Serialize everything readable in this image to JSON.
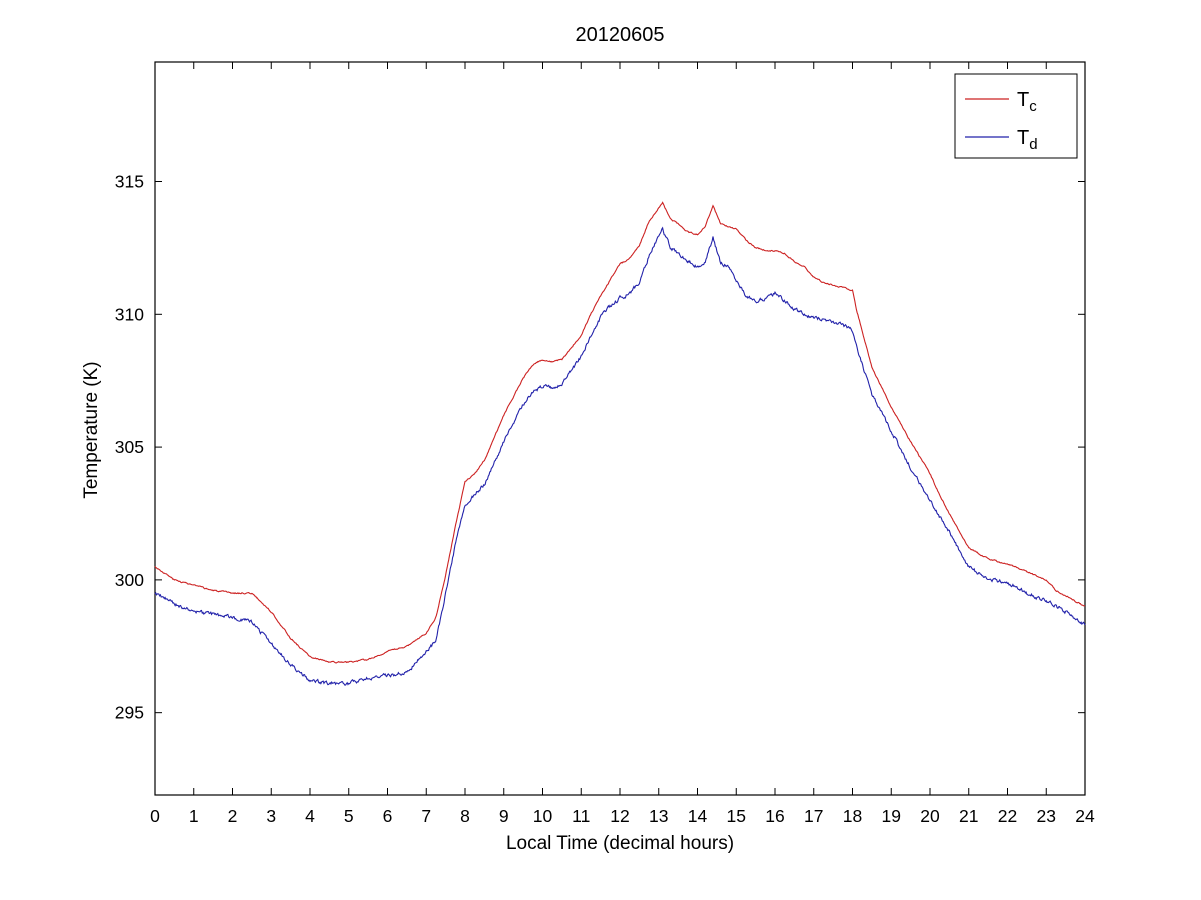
{
  "chart_data": {
    "type": "line",
    "title": "20120605",
    "xlabel": "Local Time (decimal hours)",
    "ylabel": "Temperature (K)",
    "xlim": [
      0,
      24
    ],
    "ylim": [
      291.9,
      319.5
    ],
    "xticks": [
      0,
      1,
      2,
      3,
      4,
      5,
      6,
      7,
      8,
      9,
      10,
      11,
      12,
      13,
      14,
      15,
      16,
      17,
      18,
      19,
      20,
      21,
      22,
      23,
      24
    ],
    "yticks": [
      295,
      300,
      305,
      310,
      315
    ],
    "grid": false,
    "axis_color": "#000000",
    "legend": {
      "position": "northeast"
    },
    "series": [
      {
        "name": "T_c",
        "label_base": "T",
        "label_sub": "c",
        "color": "#cc2222",
        "noise": 0.05,
        "seed": 3,
        "points": [
          [
            0,
            300.5
          ],
          [
            0.5,
            300.0
          ],
          [
            1,
            299.8
          ],
          [
            1.5,
            299.6
          ],
          [
            2,
            299.5
          ],
          [
            2.5,
            299.5
          ],
          [
            3,
            298.8
          ],
          [
            3.5,
            297.8
          ],
          [
            4,
            297.1
          ],
          [
            4.5,
            296.9
          ],
          [
            5,
            296.9
          ],
          [
            5.5,
            297.0
          ],
          [
            6,
            297.3
          ],
          [
            6.5,
            297.5
          ],
          [
            7,
            298.0
          ],
          [
            7.25,
            298.6
          ],
          [
            7.5,
            300.2
          ],
          [
            7.75,
            302.0
          ],
          [
            8,
            303.7
          ],
          [
            8.25,
            304.0
          ],
          [
            8.5,
            304.5
          ],
          [
            9,
            306.2
          ],
          [
            9.5,
            307.6
          ],
          [
            9.75,
            308.1
          ],
          [
            10,
            308.3
          ],
          [
            10.25,
            308.2
          ],
          [
            10.5,
            308.3
          ],
          [
            11,
            309.2
          ],
          [
            11.25,
            310.0
          ],
          [
            11.5,
            310.7
          ],
          [
            11.75,
            311.3
          ],
          [
            12,
            311.9
          ],
          [
            12.25,
            312.1
          ],
          [
            12.5,
            312.6
          ],
          [
            12.75,
            313.5
          ],
          [
            13,
            314.0
          ],
          [
            13.1,
            314.2
          ],
          [
            13.3,
            313.6
          ],
          [
            13.5,
            313.4
          ],
          [
            13.75,
            313.1
          ],
          [
            14,
            313.0
          ],
          [
            14.2,
            313.3
          ],
          [
            14.4,
            314.1
          ],
          [
            14.6,
            313.4
          ],
          [
            14.8,
            313.3
          ],
          [
            15,
            313.2
          ],
          [
            15.25,
            312.8
          ],
          [
            15.5,
            312.5
          ],
          [
            15.75,
            312.4
          ],
          [
            16,
            312.4
          ],
          [
            16.25,
            312.3
          ],
          [
            16.5,
            312.0
          ],
          [
            16.75,
            311.8
          ],
          [
            17,
            311.4
          ],
          [
            17.25,
            311.2
          ],
          [
            17.5,
            311.1
          ],
          [
            17.75,
            311.0
          ],
          [
            18,
            310.9
          ],
          [
            18.1,
            310.2
          ],
          [
            18.5,
            308.0
          ],
          [
            19,
            306.5
          ],
          [
            19.5,
            305.2
          ],
          [
            20,
            304.0
          ],
          [
            20.25,
            303.2
          ],
          [
            20.5,
            302.5
          ],
          [
            21,
            301.2
          ],
          [
            21.5,
            300.8
          ],
          [
            22,
            300.6
          ],
          [
            22.5,
            300.3
          ],
          [
            23,
            300.0
          ],
          [
            23.25,
            299.6
          ],
          [
            23.5,
            299.4
          ],
          [
            24,
            299.0
          ]
        ]
      },
      {
        "name": "T_d",
        "label_base": "T",
        "label_sub": "d",
        "color": "#2222aa",
        "noise": 0.13,
        "seed": 9,
        "points": [
          [
            0,
            299.5
          ],
          [
            0.5,
            299.1
          ],
          [
            1,
            298.8
          ],
          [
            1.5,
            298.7
          ],
          [
            2,
            298.6
          ],
          [
            2.5,
            298.4
          ],
          [
            3,
            297.6
          ],
          [
            3.5,
            296.8
          ],
          [
            4,
            296.2
          ],
          [
            4.5,
            296.1
          ],
          [
            5,
            296.1
          ],
          [
            5.5,
            296.3
          ],
          [
            6,
            296.4
          ],
          [
            6.5,
            296.5
          ],
          [
            7,
            297.3
          ],
          [
            7.25,
            297.7
          ],
          [
            7.5,
            299.5
          ],
          [
            7.75,
            301.3
          ],
          [
            8,
            302.8
          ],
          [
            8.25,
            303.2
          ],
          [
            8.5,
            303.6
          ],
          [
            9,
            305.2
          ],
          [
            9.5,
            306.6
          ],
          [
            9.75,
            307.1
          ],
          [
            10,
            307.3
          ],
          [
            10.25,
            307.2
          ],
          [
            10.5,
            307.4
          ],
          [
            11,
            308.4
          ],
          [
            11.25,
            309.2
          ],
          [
            11.5,
            309.9
          ],
          [
            11.75,
            310.3
          ],
          [
            12,
            310.6
          ],
          [
            12.25,
            310.8
          ],
          [
            12.5,
            311.2
          ],
          [
            12.75,
            312.2
          ],
          [
            13,
            313.0
          ],
          [
            13.1,
            313.2
          ],
          [
            13.3,
            312.5
          ],
          [
            13.5,
            312.3
          ],
          [
            13.75,
            312.0
          ],
          [
            14,
            311.8
          ],
          [
            14.2,
            312.0
          ],
          [
            14.4,
            312.9
          ],
          [
            14.6,
            311.9
          ],
          [
            14.8,
            311.8
          ],
          [
            15,
            311.3
          ],
          [
            15.25,
            310.7
          ],
          [
            15.5,
            310.5
          ],
          [
            15.75,
            310.6
          ],
          [
            16,
            310.8
          ],
          [
            16.25,
            310.5
          ],
          [
            16.5,
            310.2
          ],
          [
            16.75,
            310.0
          ],
          [
            17,
            309.9
          ],
          [
            17.25,
            309.8
          ],
          [
            17.5,
            309.7
          ],
          [
            17.75,
            309.6
          ],
          [
            18,
            309.4
          ],
          [
            18.1,
            308.8
          ],
          [
            18.5,
            307.0
          ],
          [
            19,
            305.6
          ],
          [
            19.5,
            304.2
          ],
          [
            20,
            303.0
          ],
          [
            20.5,
            301.8
          ],
          [
            21,
            300.5
          ],
          [
            21.5,
            300.0
          ],
          [
            22,
            299.9
          ],
          [
            22.5,
            299.5
          ],
          [
            23,
            299.2
          ],
          [
            23.5,
            298.8
          ],
          [
            24,
            298.3
          ]
        ]
      }
    ]
  }
}
